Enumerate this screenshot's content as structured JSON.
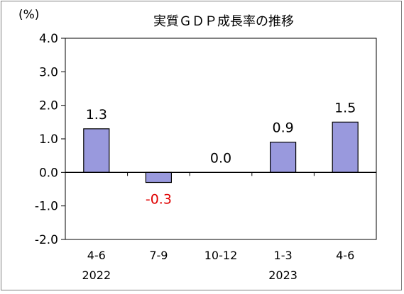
{
  "chart_data": {
    "type": "bar",
    "title": "実質ＧＤＰ成長率の推移",
    "ylabel": "(%)",
    "categories": [
      "4-6",
      "7-9",
      "10-12",
      "1-3",
      "4-6"
    ],
    "years": [
      "2022",
      "",
      "",
      "2023",
      ""
    ],
    "values": [
      1.3,
      -0.3,
      0.0,
      0.9,
      1.5
    ],
    "value_labels": [
      "1.3",
      "-0.3",
      "0.0",
      "0.9",
      "1.5"
    ],
    "ylim": [
      -2.0,
      4.0
    ],
    "yticks": [
      "4.0",
      "3.0",
      "2.0",
      "1.0",
      "0.0",
      "-1.0",
      "-2.0"
    ],
    "grid": false,
    "bar_color": "#9999dd",
    "negative_label_color": "#e00000"
  }
}
